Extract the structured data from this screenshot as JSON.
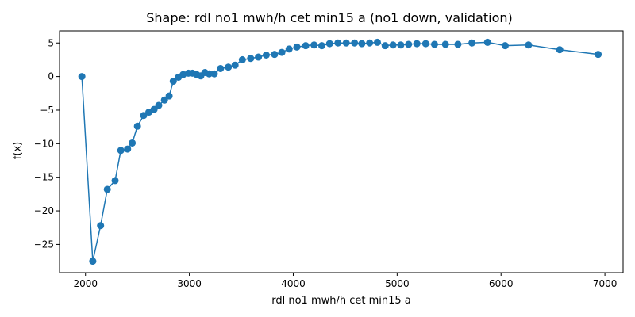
{
  "chart_data": {
    "type": "line",
    "title": "Shape: rdl no1 mwh/h cet min15 a (no1 down, validation)",
    "xlabel": "rdl no1 mwh/h cet min15 a",
    "ylabel": "f(x)",
    "xlim": [
      1750,
      7175
    ],
    "ylim": [
      -29.2,
      6.8
    ],
    "xticks": [
      2000,
      3000,
      4000,
      5000,
      6000,
      7000
    ],
    "yticks": [
      -25,
      -20,
      -15,
      -10,
      -5,
      0,
      5
    ],
    "xtick_labels": [
      "2000",
      "3000",
      "4000",
      "5000",
      "6000",
      "7000"
    ],
    "ytick_labels": [
      "−25",
      "−20",
      "−15",
      "−10",
      "−5",
      "0",
      "5"
    ],
    "color": "#1f77b4",
    "grid": false,
    "series": [
      {
        "name": "f(x)",
        "x": [
          1965,
          2070,
          2145,
          2210,
          2285,
          2340,
          2405,
          2450,
          2500,
          2560,
          2610,
          2660,
          2705,
          2760,
          2805,
          2845,
          2895,
          2940,
          2990,
          3030,
          3070,
          3110,
          3150,
          3190,
          3240,
          3300,
          3375,
          3440,
          3510,
          3590,
          3665,
          3740,
          3820,
          3890,
          3960,
          4035,
          4120,
          4200,
          4275,
          4350,
          4430,
          4510,
          4590,
          4660,
          4735,
          4810,
          4885,
          4960,
          5035,
          5110,
          5190,
          5275,
          5360,
          5465,
          5585,
          5720,
          5870,
          6040,
          6265,
          6565,
          6935
        ],
        "y": [
          0.0,
          -27.5,
          -22.2,
          -16.8,
          -15.5,
          -11.0,
          -10.8,
          -9.9,
          -7.4,
          -5.8,
          -5.3,
          -4.9,
          -4.3,
          -3.5,
          -2.9,
          -0.7,
          -0.1,
          0.3,
          0.5,
          0.5,
          0.3,
          0.1,
          0.6,
          0.4,
          0.4,
          1.2,
          1.4,
          1.7,
          2.5,
          2.7,
          2.9,
          3.2,
          3.3,
          3.6,
          4.1,
          4.4,
          4.6,
          4.7,
          4.6,
          4.9,
          5.0,
          5.0,
          5.0,
          4.9,
          5.0,
          5.1,
          4.6,
          4.7,
          4.7,
          4.8,
          4.9,
          4.9,
          4.8,
          4.8,
          4.8,
          5.0,
          5.1,
          4.6,
          4.7,
          4.0,
          3.3
        ]
      }
    ]
  }
}
